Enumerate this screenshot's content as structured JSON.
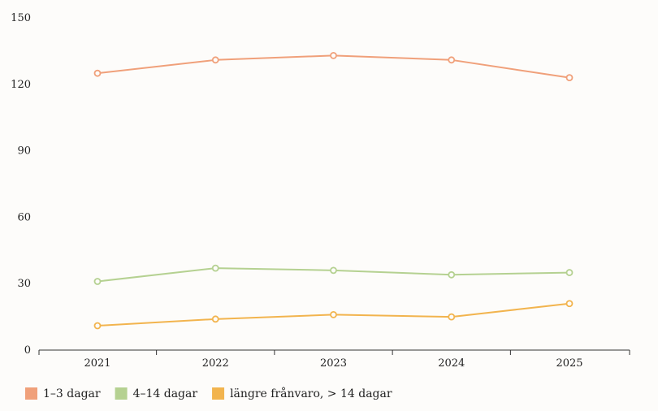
{
  "chart_data": {
    "type": "line",
    "title": "",
    "xlabel": "",
    "ylabel": "",
    "categories": [
      "2021",
      "2022",
      "2023",
      "2024",
      "2025"
    ],
    "ylim": [
      0,
      150
    ],
    "yticks": [
      0,
      30,
      60,
      90,
      120,
      150
    ],
    "grid": false,
    "legend_position": "bottom-left",
    "series": [
      {
        "name": "1–3 dagar",
        "color": "#f0a07a",
        "values": [
          125,
          131,
          133,
          131,
          123
        ]
      },
      {
        "name": "4–14 dagar",
        "color": "#b5d191",
        "values": [
          31,
          37,
          36,
          34,
          35
        ]
      },
      {
        "name": "längre frånvaro, > 14 dagar",
        "color": "#f2b44e",
        "values": [
          11,
          14,
          16,
          15,
          21
        ]
      }
    ]
  }
}
